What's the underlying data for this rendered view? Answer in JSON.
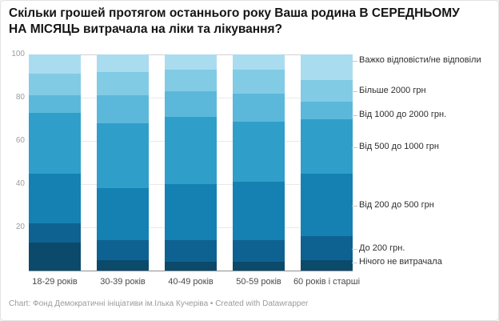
{
  "title": "Скільки грошей протягом останнього року Ваша родина В СЕРЕДНЬОМУ НА МІСЯЦЬ витрачала на ліки та лікування?",
  "footer": "Chart: Фонд Демократичні ініціативи ім.Ілька Кучеріва • Created with Datawrapper",
  "chart_data": {
    "type": "bar",
    "subtype": "stacked-column",
    "title": "Скільки грошей протягом останнього року Ваша родина В СЕРЕДНЬОМУ НА МІСЯЦЬ витрачала на ліки та лікування?",
    "categories": [
      "18-29 років",
      "30-39 років",
      "40-49 років",
      "50-59 років",
      "60 років і старші"
    ],
    "series": [
      {
        "name": "Нічого не витрачала",
        "color": "#0b4a6b",
        "values": [
          13,
          5,
          4,
          4,
          5
        ]
      },
      {
        "name": "До 200 грн.",
        "color": "#0e6291",
        "values": [
          9,
          9,
          10,
          10,
          11
        ]
      },
      {
        "name": "Від 200 до 500 грн",
        "color": "#1581b2",
        "values": [
          23,
          24,
          26,
          27,
          29
        ]
      },
      {
        "name": "Від 500 до 1000 грн",
        "color": "#2f9fca",
        "values": [
          28,
          30,
          31,
          28,
          25
        ]
      },
      {
        "name": "Від 1000 до 2000 грн.",
        "color": "#5cb8da",
        "values": [
          8,
          13,
          12,
          13,
          8
        ]
      },
      {
        "name": "Більше 2000 грн",
        "color": "#82cbe5",
        "values": [
          10,
          11,
          10,
          11,
          10
        ]
      },
      {
        "name": "Важко відповісти/не відповіли",
        "color": "#aadcef",
        "values": [
          9,
          8,
          7,
          7,
          12
        ]
      }
    ],
    "ylim": [
      0,
      100
    ],
    "yticks": [
      20,
      40,
      60,
      80,
      100
    ],
    "grid": true,
    "legend_position": "right-direct-labels",
    "source": "Фонд Демократичні ініціативи ім.Ілька Кучеріва",
    "tool": "Datawrapper"
  }
}
